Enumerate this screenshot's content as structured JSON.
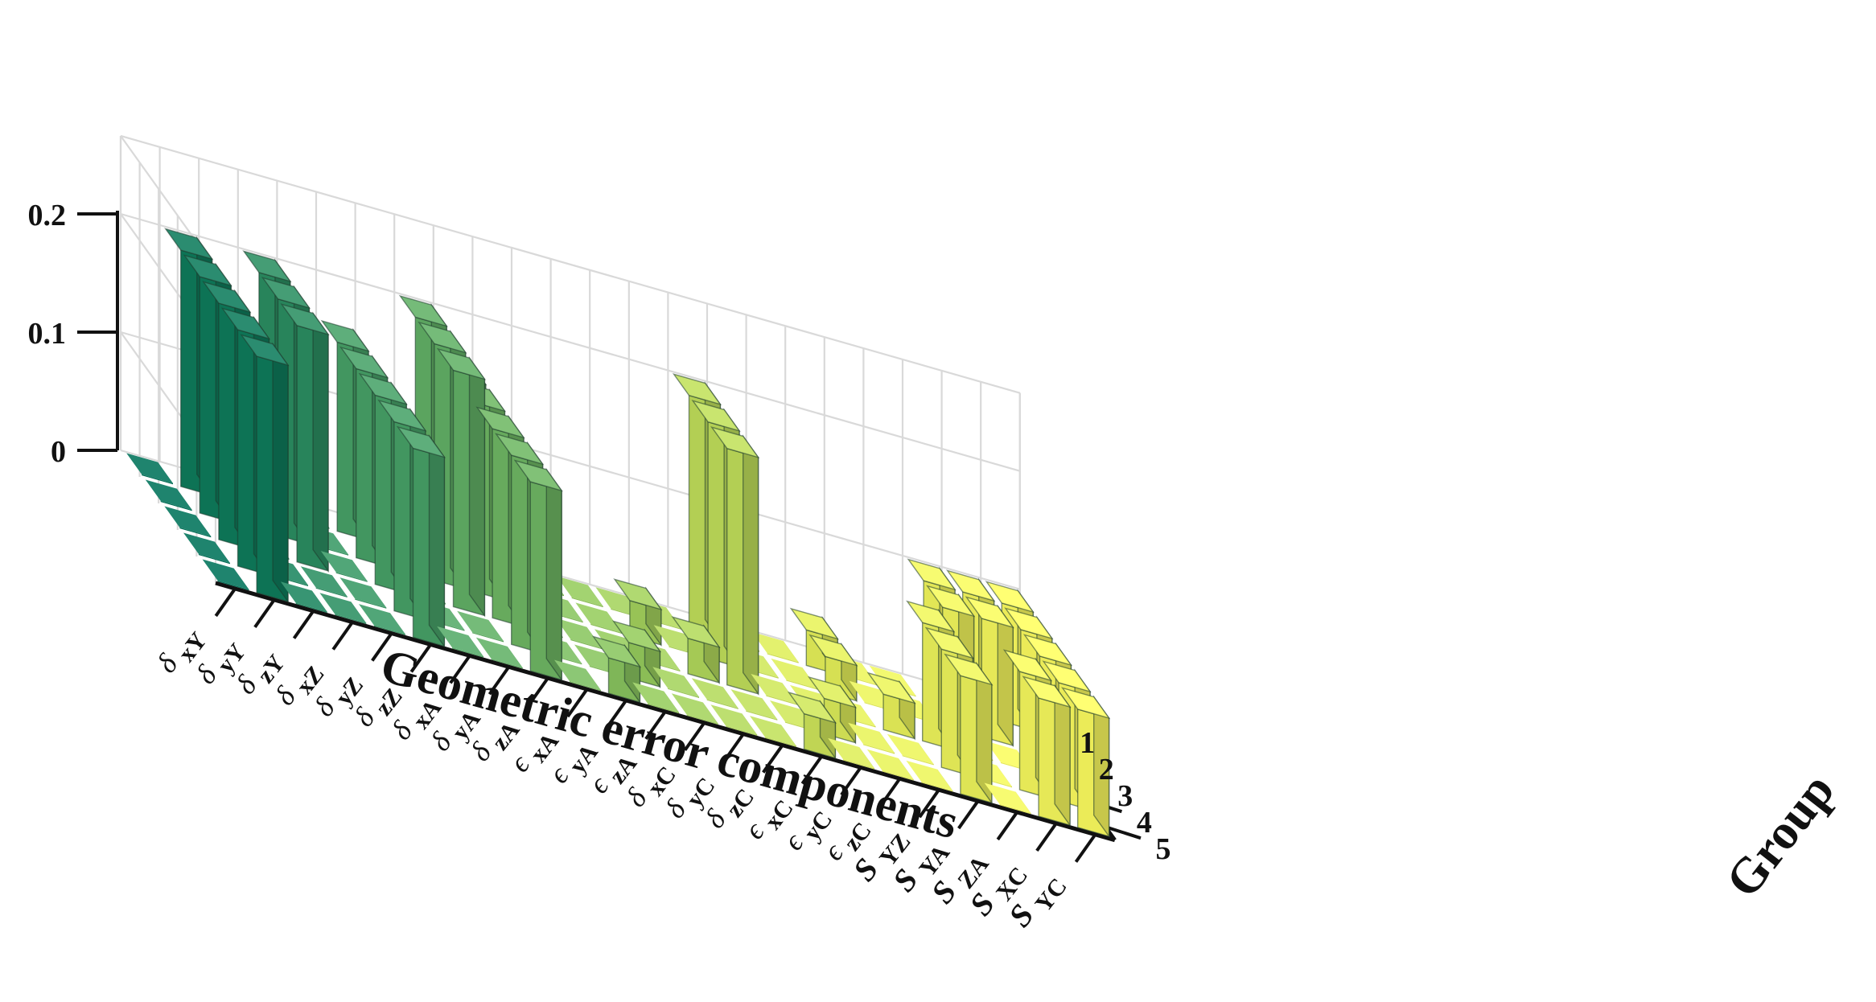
{
  "chart_data": {
    "type": "bar3d",
    "title": "",
    "xlabel": "Geometric error components",
    "ylabel": "Group",
    "zlabel": "",
    "zlim": [
      0,
      0.2
    ],
    "z_ticks": [
      "0",
      "0.1",
      "0.2"
    ],
    "group_ticks": [
      "1",
      "2",
      "3",
      "4",
      "5"
    ],
    "categories": [
      {
        "sym": "δ",
        "sub": "xY"
      },
      {
        "sym": "δ",
        "sub": "yY"
      },
      {
        "sym": "δ",
        "sub": "zY"
      },
      {
        "sym": "δ",
        "sub": "xZ"
      },
      {
        "sym": "δ",
        "sub": "yZ"
      },
      {
        "sym": "δ",
        "sub": "zZ"
      },
      {
        "sym": "δ",
        "sub": "xA"
      },
      {
        "sym": "δ",
        "sub": "yA"
      },
      {
        "sym": "δ",
        "sub": "zA"
      },
      {
        "sym": "ϵ",
        "sub": "xA"
      },
      {
        "sym": "ϵ",
        "sub": "yA"
      },
      {
        "sym": "ϵ",
        "sub": "zA"
      },
      {
        "sym": "δ",
        "sub": "xC"
      },
      {
        "sym": "δ",
        "sub": "yC"
      },
      {
        "sym": "δ",
        "sub": "zC"
      },
      {
        "sym": "ϵ",
        "sub": "xC"
      },
      {
        "sym": "ϵ",
        "sub": "yC"
      },
      {
        "sym": "ϵ",
        "sub": "zC"
      },
      {
        "sym": "S",
        "sub": "YZ"
      },
      {
        "sym": "S",
        "sub": "YA"
      },
      {
        "sym": "S",
        "sub": "ZA"
      },
      {
        "sym": "S",
        "sub": "XC"
      },
      {
        "sym": "S",
        "sub": "YC"
      }
    ],
    "values": [
      [
        0,
        0,
        0,
        0,
        0
      ],
      [
        0.2,
        0.2,
        0.2,
        0.2,
        0.2
      ],
      [
        0,
        0,
        0,
        0,
        0
      ],
      [
        0.2,
        0.2,
        0.2,
        0,
        0
      ],
      [
        0,
        0,
        0,
        0,
        0
      ],
      [
        0.16,
        0.16,
        0.16,
        0.16,
        0.16
      ],
      [
        0,
        0,
        0,
        0,
        0
      ],
      [
        0.2,
        0.2,
        0.2,
        0,
        0
      ],
      [
        0.16,
        0.16,
        0.16,
        0.16,
        0.16
      ],
      [
        0,
        0,
        0,
        0,
        0
      ],
      [
        0,
        0,
        0,
        0,
        0.03
      ],
      [
        0,
        0,
        0,
        0.03,
        0
      ],
      [
        0,
        0.03,
        0,
        0,
        0
      ],
      [
        0,
        0,
        0.03,
        0,
        0
      ],
      [
        0.2,
        0.2,
        0.2,
        0,
        0
      ],
      [
        0,
        0,
        0,
        0,
        0.03
      ],
      [
        0,
        0,
        0,
        0.03,
        0
      ],
      [
        0.03,
        0.03,
        0,
        0,
        0
      ],
      [
        0,
        0,
        0.03,
        0,
        0
      ],
      [
        0,
        0,
        0.1,
        0.1,
        0.1
      ],
      [
        0.1,
        0.1,
        0,
        0,
        0
      ],
      [
        0.1,
        0.1,
        0,
        0.1,
        0.1
      ],
      [
        0.1,
        0.1,
        0.1,
        0.1,
        0.1
      ]
    ],
    "grid": true,
    "colormap": [
      "#00735a",
      "#4fa86a",
      "#97cd5e",
      "#e6f25a",
      "#ffff60"
    ]
  }
}
